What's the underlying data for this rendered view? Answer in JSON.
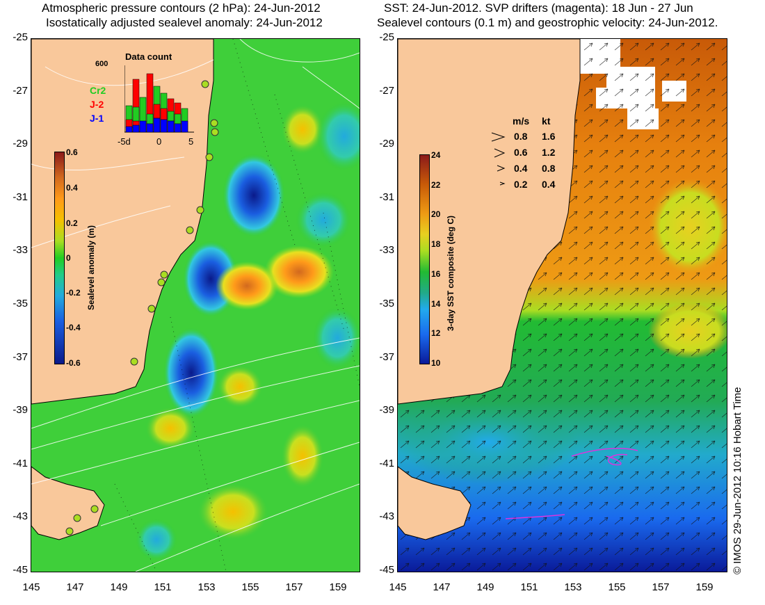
{
  "left_panel": {
    "title_line1": "Atmospheric pressure contours (2 hPa): 24-Jun-2012",
    "title_line2": "Isostatically adjusted sealevel anomaly: 24-Jun-2012",
    "y_ticks": [
      "-25",
      "-27",
      "-29",
      "-31",
      "-33",
      "-35",
      "-37",
      "-39",
      "-41",
      "-43",
      "-45"
    ],
    "x_ticks": [
      "145",
      "147",
      "149",
      "151",
      "153",
      "155",
      "157",
      "159"
    ],
    "colorbar": {
      "label": "Sealevel anomaly (m)",
      "ticks": [
        "0.6",
        "0.4",
        "0.2",
        "0",
        "-0.2",
        "-0.4",
        "-0.6"
      ]
    },
    "inset": {
      "title": "Data count",
      "y_max": "600",
      "x_ticks": [
        "-5d",
        "0",
        "5"
      ],
      "legend": [
        {
          "name": "Cr2",
          "color": "#22cc22"
        },
        {
          "name": "J-2",
          "color": "#ff0000"
        },
        {
          "name": "J-1",
          "color": "#0000ff"
        }
      ]
    }
  },
  "right_panel": {
    "title_line1": "SST: 24-Jun-2012. SVP drifters (magenta): 18 Jun - 27 Jun",
    "title_line2": "Sealevel contours (0.1 m) and geostrophic velocity: 24-Jun-2012.",
    "y_ticks": [
      "-25",
      "-27",
      "-29",
      "-31",
      "-33",
      "-35",
      "-37",
      "-39",
      "-41",
      "-43",
      "-45"
    ],
    "x_ticks": [
      "145",
      "147",
      "149",
      "151",
      "153",
      "155",
      "157",
      "159"
    ],
    "colorbar": {
      "label": "3-day SST composite (deg C)",
      "ticks": [
        "24",
        "22",
        "20",
        "18",
        "16",
        "14",
        "12",
        "10"
      ]
    },
    "velocity_legend": {
      "header_ms": "m/s",
      "header_kt": "kt",
      "rows": [
        {
          "ms": "0.8",
          "kt": "1.6"
        },
        {
          "ms": "0.6",
          "kt": "1.2"
        },
        {
          "ms": "0.4",
          "kt": "0.8"
        },
        {
          "ms": "0.2",
          "kt": "0.4"
        }
      ]
    }
  },
  "copyright": "© IMOS 29-Jun-2012 10:16 Hobart Time",
  "colors": {
    "land": "#f9c89b",
    "sla_green": "#33cc33",
    "sst_orange": "#e8800a",
    "sst_green": "#22bb33",
    "sst_blue": "#1a6aee"
  }
}
